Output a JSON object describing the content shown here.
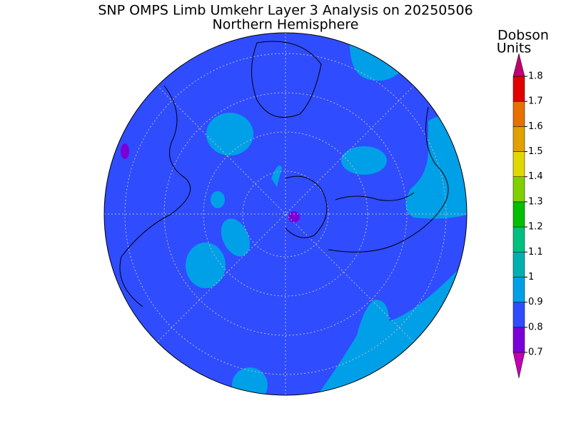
{
  "header": {
    "title": "SNP OMPS Limb Umkehr Layer 3 Analysis on 20250506",
    "subtitle": "Northern Hemisphere"
  },
  "colorbar": {
    "label_lines": [
      "Dobson",
      "Units"
    ],
    "ticks": [
      0.7,
      0.8,
      0.9,
      1,
      1.1,
      1.2,
      1.3,
      1.4,
      1.5,
      1.6,
      1.7,
      1.8
    ],
    "colors": [
      "#7a00d8",
      "#2f4cff",
      "#00a0e8",
      "#00b0b0",
      "#00c080",
      "#00c000",
      "#80d000",
      "#e0d800",
      "#e0a000",
      "#e87000",
      "#e00000"
    ],
    "under_color": "#c000b0",
    "over_color": "#c00070"
  }
}
